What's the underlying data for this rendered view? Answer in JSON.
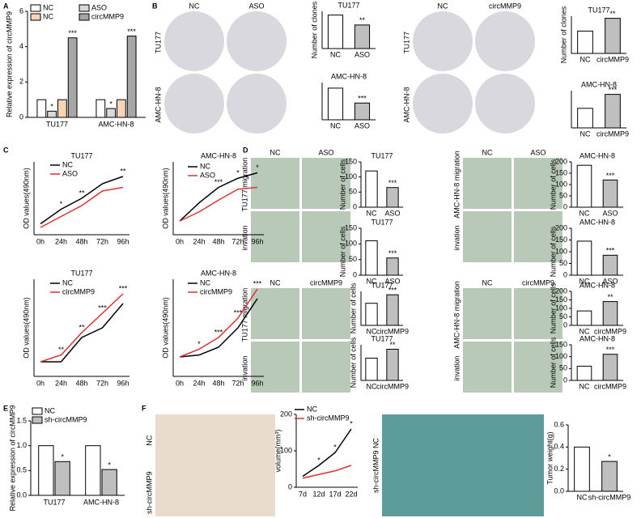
{
  "panel_letters": [
    "A",
    "B",
    "C",
    "D",
    "E",
    "F"
  ],
  "photo_panels": [
    {
      "top": [
        "NC",
        "ASO"
      ],
      "side": [
        "TU177",
        "AMC-HN-8"
      ]
    },
    {
      "top": [
        "NC",
        "circMMP9"
      ],
      "side": [
        "TU177",
        "AMC-HN-8"
      ]
    },
    {
      "top": [
        "NC",
        "ASO"
      ],
      "side": [
        "TU177 migration",
        "invation"
      ]
    },
    {
      "top": [
        "NC",
        "ASO"
      ],
      "side": [
        "AMC-HN-8 migration",
        "invation"
      ]
    },
    {
      "top": [
        "NC",
        "circMMP9"
      ],
      "side": [
        "TU177 migration",
        "invation"
      ]
    },
    {
      "top": [
        "NC",
        "circMMP9"
      ],
      "side": [
        "AMC-HN-8 migration",
        "invation"
      ]
    },
    {
      "top": [],
      "side": [
        "NC",
        "sh-circMMP9"
      ]
    },
    {
      "top": [],
      "side": [
        "sh-circMMP9 NC"
      ]
    }
  ],
  "chart_data": [
    {
      "type": "grouped_bar",
      "ylabel": "Relative expression of circMMP9",
      "categories": [
        "TU177",
        "AMC-HN-8"
      ],
      "ylim": [
        0,
        6
      ],
      "yticks": [
        0,
        2,
        4,
        6
      ],
      "series": [
        {
          "name": "NC",
          "color": "#ffffff",
          "values": [
            1.0,
            1.0
          ],
          "annotations": [
            null,
            null
          ]
        },
        {
          "name": "ASO",
          "color": "#d9d9d9",
          "values": [
            0.35,
            0.5
          ],
          "annotations": [
            "*",
            "*"
          ]
        },
        {
          "name": "NC",
          "color": "#f6d5b6",
          "values": [
            1.0,
            1.0
          ],
          "annotations": [
            null,
            null
          ]
        },
        {
          "name": "circMMP9",
          "color": "#a6a6a6",
          "values": [
            4.5,
            4.6
          ],
          "annotations": [
            "***",
            "***"
          ]
        }
      ]
    },
    {
      "type": "bar",
      "title": "TU177",
      "ylabel": "Number of clones",
      "categories": [
        "NC",
        "ASO"
      ],
      "values": [
        270,
        190
      ],
      "colors": [
        "#ffffff",
        "#bfbfbf"
      ],
      "ylim": [
        0,
        300
      ],
      "annotations": [
        null,
        "**"
      ]
    },
    {
      "type": "bar",
      "title": "AMC-HN-8",
      "categories": [
        "NC",
        "ASO"
      ],
      "values": [
        340,
        180
      ],
      "colors": [
        "#ffffff",
        "#bfbfbf"
      ],
      "ylim": [
        0,
        400
      ],
      "annotations": [
        null,
        "***"
      ]
    },
    {
      "type": "bar",
      "title": "TU177",
      "ylabel": "Number of clones",
      "categories": [
        "NC",
        "circMMP9"
      ],
      "values": [
        210,
        330
      ],
      "colors": [
        "#ffffff",
        "#bfbfbf"
      ],
      "ylim": [
        0,
        350
      ],
      "annotations": [
        null,
        "**"
      ]
    },
    {
      "type": "bar",
      "title": "AMC-HN-8",
      "categories": [
        "NC",
        "circMMP9"
      ],
      "values": [
        105,
        180
      ],
      "colors": [
        "#ffffff",
        "#bfbfbf"
      ],
      "ylim": [
        0,
        200
      ],
      "annotations": [
        null,
        "***"
      ]
    },
    {
      "type": "line",
      "title": "TU177",
      "ylabel": "OD values(490nm)",
      "categories": [
        "0h",
        "24h",
        "48h",
        "72h",
        "96h"
      ],
      "ylim": [
        0.9,
        1.9
      ],
      "annotations": [
        null,
        "*",
        "**",
        null,
        "**"
      ],
      "series": [
        {
          "name": "NC",
          "color": "#000000",
          "values": [
            1.05,
            1.25,
            1.4,
            1.6,
            1.7
          ]
        },
        {
          "name": "ASO",
          "color": "#e03030",
          "values": [
            1.0,
            1.15,
            1.3,
            1.5,
            1.55
          ]
        }
      ]
    },
    {
      "type": "line",
      "title": "AMC-HN-8",
      "ylabel": "OD values(490nm)",
      "categories": [
        "0h",
        "24h",
        "48h",
        "72h",
        "96h"
      ],
      "ylim": [
        1.1,
        1.9
      ],
      "annotations": [
        null,
        null,
        "***",
        "*",
        "*"
      ],
      "series": [
        {
          "name": "NC",
          "color": "#000000",
          "values": [
            1.25,
            1.45,
            1.62,
            1.72,
            1.78
          ]
        },
        {
          "name": "ASO",
          "color": "#e03030",
          "values": [
            1.25,
            1.35,
            1.48,
            1.6,
            1.62
          ]
        }
      ]
    },
    {
      "type": "line",
      "title": "TU177",
      "ylabel": "OD values(490nm)",
      "categories": [
        "0h",
        "24h",
        "48h",
        "72h",
        "96h"
      ],
      "ylim": [
        0.9,
        1.9
      ],
      "annotations": [
        null,
        "**",
        "**",
        "***",
        "***"
      ],
      "series": [
        {
          "name": "NC",
          "color": "#000000",
          "values": [
            1.05,
            1.05,
            1.3,
            1.4,
            1.65
          ]
        },
        {
          "name": "circMMP9",
          "color": "#e03030",
          "values": [
            1.05,
            1.12,
            1.35,
            1.55,
            1.75
          ]
        }
      ]
    },
    {
      "type": "line",
      "title": "AMC-HN-8",
      "ylabel": "OD values(490nm)",
      "categories": [
        "0h",
        "24h",
        "48h",
        "72h",
        "96h"
      ],
      "ylim": [
        0.9,
        1.9
      ],
      "annotations": [
        null,
        "*",
        "***",
        "***",
        "***"
      ],
      "series": [
        {
          "name": "NC",
          "color": "#000000",
          "values": [
            1.1,
            1.12,
            1.2,
            1.4,
            1.7
          ]
        },
        {
          "name": "circMMP9",
          "color": "#e03030",
          "values": [
            1.1,
            1.18,
            1.3,
            1.5,
            1.8
          ]
        }
      ]
    },
    {
      "type": "bar",
      "title": "TU177",
      "ylabel": "Number of cells",
      "categories": [
        "NC",
        "ASO"
      ],
      "values": [
        120,
        65
      ],
      "colors": [
        "#ffffff",
        "#bfbfbf"
      ],
      "ylim": [
        0,
        150
      ],
      "yticks": [
        0,
        50,
        100,
        150
      ],
      "annotations": [
        null,
        "***"
      ]
    },
    {
      "type": "bar",
      "title": "TU177",
      "ylabel": "Number of cells",
      "categories": [
        "NC",
        "ASO"
      ],
      "values": [
        110,
        55
      ],
      "colors": [
        "#ffffff",
        "#bfbfbf"
      ],
      "ylim": [
        0,
        150
      ],
      "yticks": [
        0,
        50,
        100,
        150
      ],
      "annotations": [
        null,
        "***"
      ]
    },
    {
      "type": "bar",
      "title": "AMC-HN-8",
      "ylabel": "Number of cells",
      "categories": [
        "NC",
        "ASO"
      ],
      "values": [
        185,
        120
      ],
      "colors": [
        "#ffffff",
        "#bfbfbf"
      ],
      "ylim": [
        0,
        200
      ],
      "yticks": [
        0,
        50,
        100,
        150,
        200
      ],
      "annotations": [
        null,
        "***"
      ]
    },
    {
      "type": "bar",
      "title": "AMC-HN-8",
      "ylabel": "Number of cells",
      "categories": [
        "NC",
        "ASO"
      ],
      "values": [
        145,
        85
      ],
      "colors": [
        "#ffffff",
        "#bfbfbf"
      ],
      "ylim": [
        0,
        200
      ],
      "yticks": [
        0,
        50,
        100,
        150,
        200
      ],
      "annotations": [
        null,
        "***"
      ]
    },
    {
      "type": "bar",
      "title": "TU177",
      "ylabel": "Number of cells",
      "categories": [
        "NC",
        "circMMP9"
      ],
      "values": [
        130,
        180
      ],
      "colors": [
        "#ffffff",
        "#bfbfbf"
      ],
      "ylim": [
        0,
        200
      ],
      "annotations": [
        null,
        "***"
      ]
    },
    {
      "type": "bar",
      "title": "TU177",
      "ylabel": "Number of cells",
      "categories": [
        "NC",
        "circMMP9"
      ],
      "values": [
        75,
        105
      ],
      "colors": [
        "#ffffff",
        "#bfbfbf"
      ],
      "ylim": [
        0,
        120
      ],
      "annotations": [
        null,
        "**"
      ]
    },
    {
      "type": "bar",
      "title": "AMC-HN-8",
      "ylabel": "Number of cells",
      "categories": [
        "NC",
        "circMMP9"
      ],
      "values": [
        85,
        140
      ],
      "colors": [
        "#ffffff",
        "#bfbfbf"
      ],
      "ylim": [
        0,
        200
      ],
      "yticks": [
        0,
        50,
        100,
        150,
        200
      ],
      "annotations": [
        null,
        "**"
      ]
    },
    {
      "type": "bar",
      "title": "AMC-HN-8",
      "ylabel": "Number of cells",
      "categories": [
        "NC",
        "circMMP9"
      ],
      "values": [
        60,
        110
      ],
      "colors": [
        "#ffffff",
        "#bfbfbf"
      ],
      "ylim": [
        0,
        150
      ],
      "yticks": [
        0,
        50,
        100,
        150
      ],
      "annotations": [
        null,
        "***"
      ]
    },
    {
      "type": "grouped_bar",
      "ylabel": "Relative expression of circMMP9",
      "categories": [
        "TU177",
        "AMC-HN-8"
      ],
      "ylim": [
        0,
        1.5
      ],
      "yticks": [
        {
          "value": 0,
          "label": "0.0"
        },
        0.5,
        {
          "value": 1,
          "label": "1.0"
        },
        1.5
      ],
      "series": [
        {
          "name": "NC",
          "color": "#ffffff",
          "values": [
            1.0,
            1.0
          ],
          "annotations": [
            null,
            null
          ]
        },
        {
          "name": "sh-circMMP9",
          "color": "#bfbfbf",
          "values": [
            0.68,
            0.52
          ],
          "annotations": [
            "*",
            "*"
          ]
        }
      ]
    },
    {
      "type": "line",
      "ylabel": "volume(mm³)",
      "categories": [
        "7d",
        "12d",
        "17d",
        "22d"
      ],
      "ylim": [
        0,
        200
      ],
      "yticks": [
        0,
        100,
        200
      ],
      "annotations": [
        null,
        "*",
        "*",
        "*"
      ],
      "series": [
        {
          "name": "NC",
          "color": "#000000",
          "values": [
            30,
            60,
            95,
            160
          ]
        },
        {
          "name": "sh-circMMP9",
          "color": "#e03030",
          "values": [
            25,
            35,
            45,
            60
          ]
        }
      ]
    },
    {
      "type": "bar",
      "ylabel": "Tumor weight(g)",
      "categories": [
        "NC",
        "sh-circMMP9"
      ],
      "values": [
        0.4,
        0.27
      ],
      "colors": [
        "#ffffff",
        "#bfbfbf"
      ],
      "ylim": [
        0,
        0.6
      ],
      "yticks": [
        {
          "value": 0,
          "label": "0.0"
        },
        0.2,
        0.4,
        0.6
      ],
      "annotations": [
        null,
        "*"
      ]
    }
  ]
}
